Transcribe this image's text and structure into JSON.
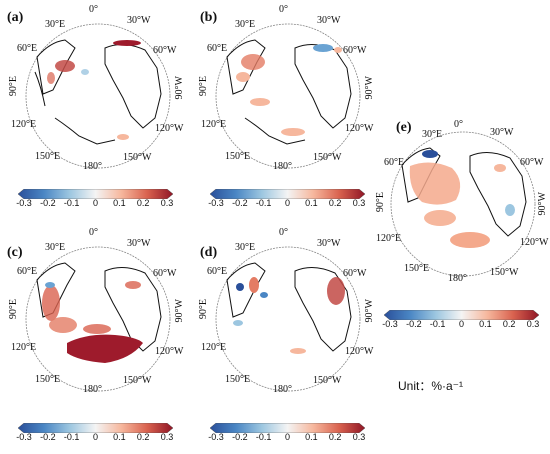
{
  "panels": [
    {
      "id": "a",
      "label": "(a)"
    },
    {
      "id": "b",
      "label": "(b)"
    },
    {
      "id": "c",
      "label": "(c)"
    },
    {
      "id": "d",
      "label": "(d)"
    },
    {
      "id": "e",
      "label": "(e)"
    }
  ],
  "longitude_labels": [
    "0°",
    "30°E",
    "30°W",
    "60°E",
    "60°W",
    "90°E",
    "90°W",
    "120°E",
    "120°W",
    "150°E",
    "150°W",
    "180°"
  ],
  "colorbar": {
    "ticks": [
      "-0.3",
      "-0.2",
      "-0.1",
      "0",
      "0.1",
      "0.2",
      "0.3"
    ],
    "min": -0.3,
    "max": 0.3,
    "colors": [
      "#2a4f9a",
      "#4a86c4",
      "#9cc6e0",
      "#f4f4f4",
      "#f6b79d",
      "#d9624f",
      "#8f1525"
    ]
  },
  "unit_label": "Unit：%·a⁻¹"
}
